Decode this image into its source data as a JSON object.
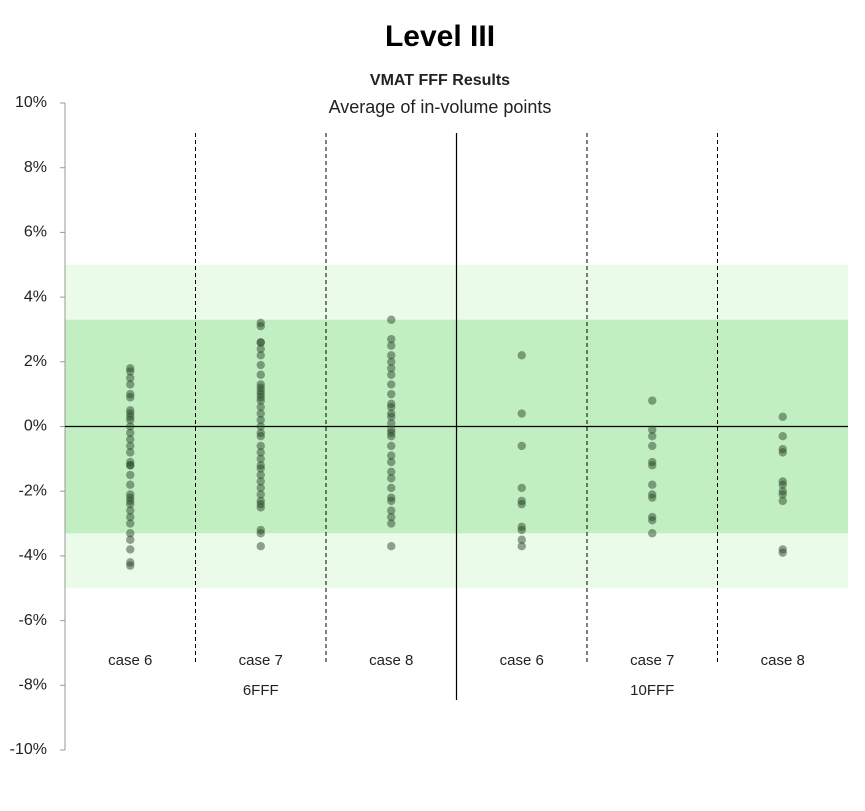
{
  "heading": "Level III",
  "chart_data": {
    "type": "strip",
    "title": "VMAT FFF Results",
    "subtitle": "Average of in-volume points",
    "ylim": [
      -10,
      10
    ],
    "yticks": [
      {
        "value": 10,
        "label": "10%"
      },
      {
        "value": 8,
        "label": "8%"
      },
      {
        "value": 6,
        "label": "6%"
      },
      {
        "value": 4,
        "label": "4%"
      },
      {
        "value": 2,
        "label": "2%"
      },
      {
        "value": 0,
        "label": "0%"
      },
      {
        "value": -2,
        "label": "-2%"
      },
      {
        "value": -4,
        "label": "-4%"
      },
      {
        "value": -6,
        "label": "-6%"
      },
      {
        "value": -8,
        "label": "-8%"
      },
      {
        "value": -10,
        "label": "-10%"
      }
    ],
    "bands": [
      {
        "range": [
          -5,
          5
        ],
        "color": "#ebfbe9"
      },
      {
        "range": [
          -3.3,
          3.3
        ],
        "color": "#c2efc2"
      }
    ],
    "point_color": "#2b472b",
    "groups": [
      {
        "name": "6FFF",
        "categories": [
          "case 6",
          "case 7",
          "case 8"
        ],
        "values": [
          [
            1.8,
            1.7,
            1.5,
            1.3,
            1.0,
            0.9,
            0.5,
            0.4,
            0.3,
            0.2,
            0,
            -0.2,
            -0.4,
            -0.6,
            -0.8,
            -1.1,
            -1.2,
            -1.2,
            -1.5,
            -1.8,
            -2.1,
            -2.2,
            -2.3,
            -2.4,
            -2.6,
            -2.8,
            -3.0,
            -3.3,
            -3.5,
            -3.8,
            -4.2,
            -4.3
          ],
          [
            3.2,
            3.1,
            2.6,
            2.6,
            2.4,
            2.2,
            1.9,
            1.6,
            1.3,
            1.2,
            1.1,
            1.0,
            0.9,
            0.8,
            0.6,
            0.4,
            0.2,
            0,
            -0.2,
            -0.3,
            -0.6,
            -0.8,
            -1.0,
            -1.2,
            -1.3,
            -1.5,
            -1.7,
            -1.9,
            -2.1,
            -2.3,
            -2.4,
            -2.5,
            -3.2,
            -3.3,
            -3.7
          ],
          [
            3.3,
            2.7,
            2.5,
            2.2,
            2.0,
            1.8,
            1.6,
            1.3,
            1.0,
            0.7,
            0.6,
            0.4,
            0.3,
            0.1,
            -0.1,
            -0.2,
            -0.3,
            -0.6,
            -0.9,
            -1.1,
            -1.4,
            -1.6,
            -1.9,
            -2.2,
            -2.3,
            -2.6,
            -2.8,
            -3.0,
            -3.7
          ]
        ]
      },
      {
        "name": "10FFF",
        "categories": [
          "case 6",
          "case 7",
          "case 8"
        ],
        "values": [
          [
            2.2,
            0.4,
            -0.6,
            -1.9,
            -2.3,
            -2.4,
            -3.1,
            -3.2,
            -3.5,
            -3.7
          ],
          [
            0.8,
            -0.1,
            -0.3,
            -0.6,
            -1.1,
            -1.2,
            -1.8,
            -2.1,
            -2.2,
            -2.8,
            -2.9,
            -3.3
          ],
          [
            0.3,
            -0.3,
            -0.7,
            -0.8,
            -1.7,
            -1.8,
            -2.0,
            -2.1,
            -2.3,
            -3.8,
            -3.9
          ]
        ]
      }
    ]
  }
}
